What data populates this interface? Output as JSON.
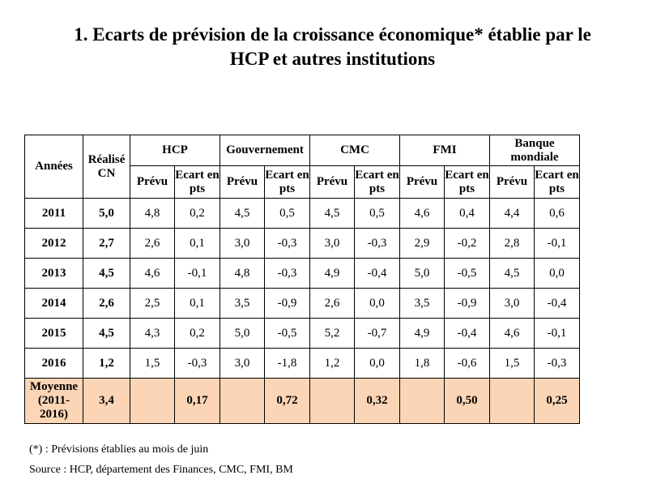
{
  "title": {
    "line1": "1.  Ecarts de prévision de la croissance économique* établie par le",
    "line2": "HCP et autres institutions"
  },
  "table": {
    "col_years": "Années",
    "col_realise": "Réalisé CN",
    "institutions": [
      "HCP",
      "Gouvernement",
      "CMC",
      "FMI",
      "Banque mondiale"
    ],
    "sub_prevu": "Prévu",
    "sub_ecart": "Ecart en pts",
    "rows": [
      {
        "year": "2011",
        "real": "5,0",
        "vals": [
          "4,8",
          "0,2",
          "4,5",
          "0,5",
          "4,5",
          "0,5",
          "4,6",
          "0,4",
          "4,4",
          "0,6"
        ]
      },
      {
        "year": "2012",
        "real": "2,7",
        "vals": [
          "2,6",
          "0,1",
          "3,0",
          "-0,3",
          "3,0",
          "-0,3",
          "2,9",
          "-0,2",
          "2,8",
          "-0,1"
        ]
      },
      {
        "year": "2013",
        "real": "4,5",
        "vals": [
          "4,6",
          "-0,1",
          "4,8",
          "-0,3",
          "4,9",
          "-0,4",
          "5,0",
          "-0,5",
          "4,5",
          "0,0"
        ]
      },
      {
        "year": "2014",
        "real": "2,6",
        "vals": [
          "2,5",
          "0,1",
          "3,5",
          "-0,9",
          "2,6",
          "0,0",
          "3,5",
          "-0,9",
          "3,0",
          "-0,4"
        ]
      },
      {
        "year": "2015",
        "real": "4,5",
        "vals": [
          "4,3",
          "0,2",
          "5,0",
          "-0,5",
          "5,2",
          "-0,7",
          "4,9",
          "-0,4",
          "4,6",
          "-0,1"
        ]
      },
      {
        "year": "2016",
        "real": "1,2",
        "vals": [
          "1,5",
          "-0,3",
          "3,0",
          "-1,8",
          "1,2",
          "0,0",
          "1,8",
          "-0,6",
          "1,5",
          "-0,3"
        ]
      }
    ],
    "average": {
      "label_line1": "Moyenne",
      "label_line2": "(2011-",
      "label_line3": "2016)",
      "real": "3,4",
      "vals": [
        "",
        "0,17",
        "",
        "0,72",
        "",
        "0,32",
        "",
        "0,50",
        "",
        "0,25"
      ]
    },
    "highlight_color": "#fbd5b5"
  },
  "notes": {
    "footnote": "(*) : Prévisions établies au mois de juin",
    "source": "Source : HCP, département des Finances,  CMC, FMI, BM"
  }
}
